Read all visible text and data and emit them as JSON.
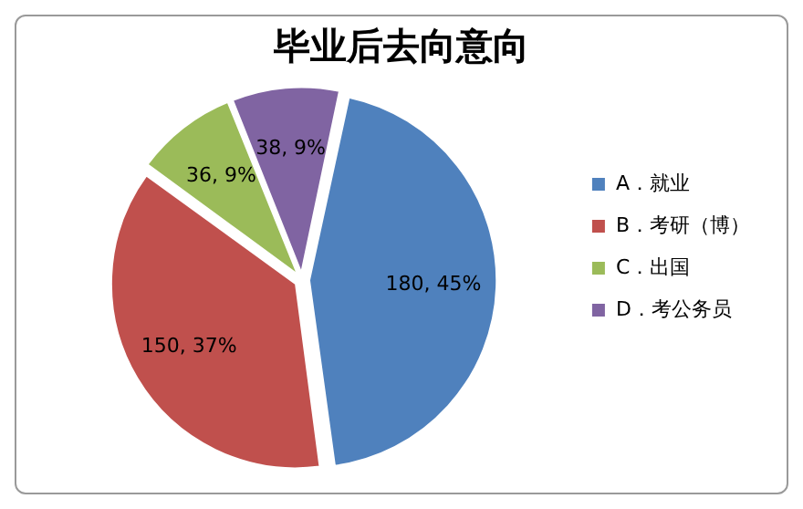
{
  "chart_data": {
    "type": "pie",
    "title": "毕业后去向意向",
    "categories": [
      "A．就业",
      "B．考研（博）",
      "C．出国",
      "D．考公务员"
    ],
    "values": [
      180,
      150,
      36,
      38
    ],
    "value_labels": [
      "180, 45%",
      "150, 37%",
      "36, 9%",
      "38, 9%"
    ],
    "colors": [
      "#4f81bd",
      "#c0504d",
      "#9bbb59",
      "#8064a2"
    ],
    "legend": "right"
  }
}
